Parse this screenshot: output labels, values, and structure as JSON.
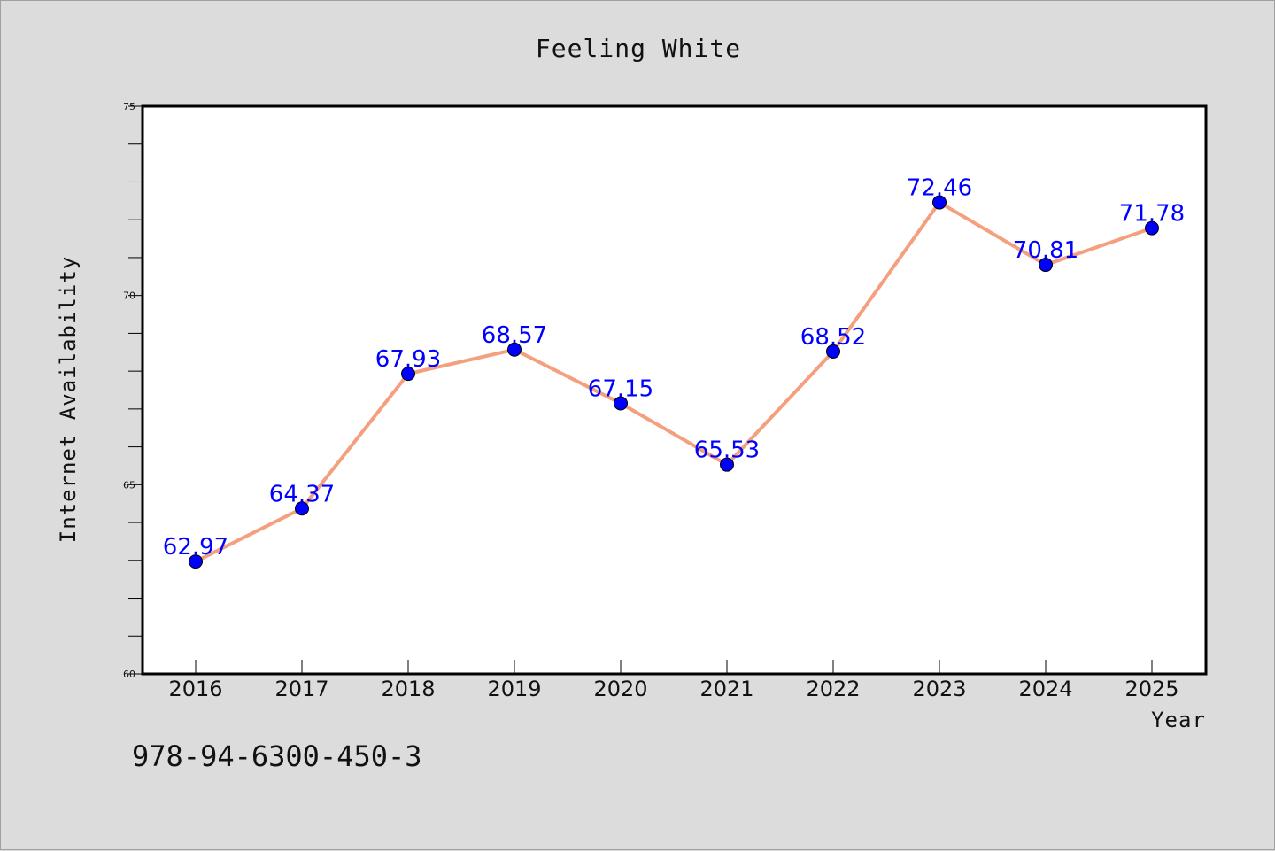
{
  "chart_data": {
    "type": "line",
    "title": "Feeling White",
    "xlabel": "Year",
    "ylabel": "Internet Availability",
    "x": [
      "2016",
      "2017",
      "2018",
      "2019",
      "2020",
      "2021",
      "2022",
      "2023",
      "2024",
      "2025"
    ],
    "values": [
      62.97,
      64.37,
      67.93,
      68.57,
      67.15,
      65.53,
      68.52,
      72.46,
      70.81,
      71.78
    ],
    "data_labels": [
      "62.97",
      "64.37",
      "67.93",
      "68.57",
      "67.15",
      "65.53",
      "68.52",
      "72.46",
      "70.81",
      "71.78"
    ],
    "ylim": [
      60,
      75
    ],
    "yticks": [
      60,
      65,
      70,
      75
    ],
    "yticks_labels": [
      "60",
      "65",
      "70",
      "75"
    ],
    "grid": false,
    "line_color": "#f4a07f",
    "marker_color": "#0000ff",
    "label_color": "#0000ff",
    "background_color": "#dcdcdc",
    "plot_background": "#ffffff"
  },
  "footer": {
    "isbn": "978-94-6300-450-3"
  }
}
